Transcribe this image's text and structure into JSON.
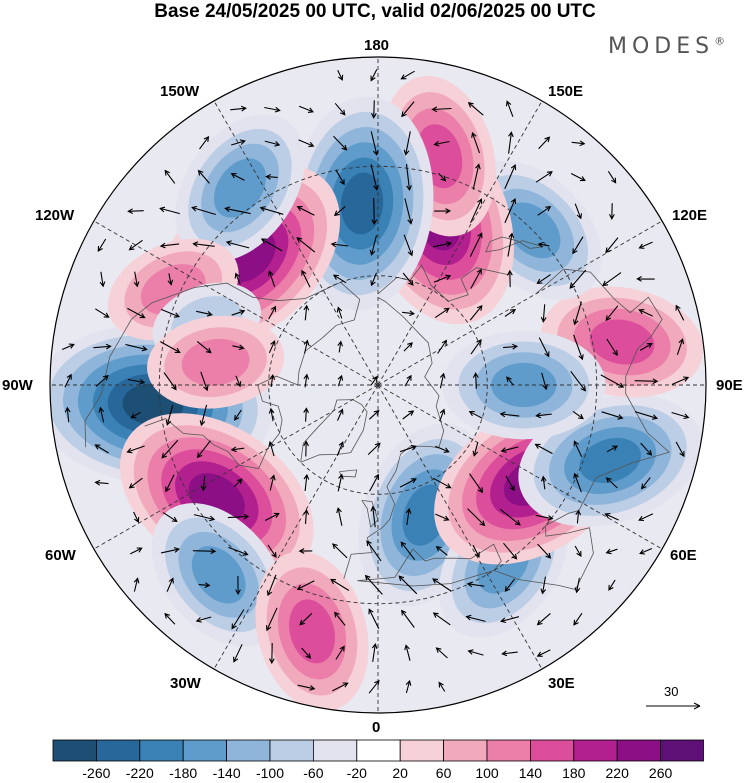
{
  "title": "Base 24/05/2025 00 UTC, valid 02/06/2025 00 UTC",
  "brand": "MODES",
  "brand_mark": "®",
  "longitude_labels": {
    "lon_0": "0",
    "lon_30e": "30E",
    "lon_60e": "60E",
    "lon_90e": "90E",
    "lon_120e": "120E",
    "lon_150e": "150E",
    "lon_180": "180",
    "lon_150w": "150W",
    "lon_120w": "120W",
    "lon_90w": "90W",
    "lon_60w": "60W",
    "lon_30w": "30W"
  },
  "reference_vector": {
    "label": "30"
  },
  "colorbar": {
    "ticks": [
      "-260",
      "-220",
      "-180",
      "-140",
      "-100",
      "-60",
      "-20",
      "20",
      "60",
      "100",
      "140",
      "180",
      "220",
      "260"
    ],
    "colors": [
      "#1d4e74",
      "#28679a",
      "#3a82b6",
      "#5f9ccb",
      "#8fb6da",
      "#bccde6",
      "#e3e3ef",
      "#ffffff",
      "#f6d1d8",
      "#f1a9bc",
      "#eb7fa9",
      "#dc4e9b",
      "#b21f8f",
      "#8c0f85",
      "#5e1077"
    ]
  },
  "map": {
    "projection": "north-polar-stereographic",
    "anomalies": [
      {
        "lon": -85,
        "lat": 28,
        "value": -260
      },
      {
        "lon": -55,
        "lat": 36,
        "value": 220
      },
      {
        "lon": -40,
        "lat": 22,
        "value": -140
      },
      {
        "lon": -15,
        "lat": 20,
        "value": 140
      },
      {
        "lon": 20,
        "lat": 52,
        "value": -180
      },
      {
        "lon": 35,
        "lat": 30,
        "value": -140
      },
      {
        "lon": 58,
        "lat": 40,
        "value": 220
      },
      {
        "lon": 72,
        "lat": 23,
        "value": -180
      },
      {
        "lon": 100,
        "lat": 22,
        "value": 140
      },
      {
        "lon": 90,
        "lat": 50,
        "value": -140
      },
      {
        "lon": 135,
        "lat": 30,
        "value": -140
      },
      {
        "lon": 160,
        "lat": 42,
        "value": 220
      },
      {
        "lon": 165,
        "lat": 25,
        "value": 140
      },
      {
        "lon": -175,
        "lat": 40,
        "value": -220
      },
      {
        "lon": -135,
        "lat": 40,
        "value": 220
      },
      {
        "lon": -145,
        "lat": 24,
        "value": -140
      },
      {
        "lon": -115,
        "lat": 28,
        "value": 100
      },
      {
        "lon": -110,
        "lat": 40,
        "value": -60
      },
      {
        "lon": -98,
        "lat": 45,
        "value": 100
      }
    ]
  }
}
